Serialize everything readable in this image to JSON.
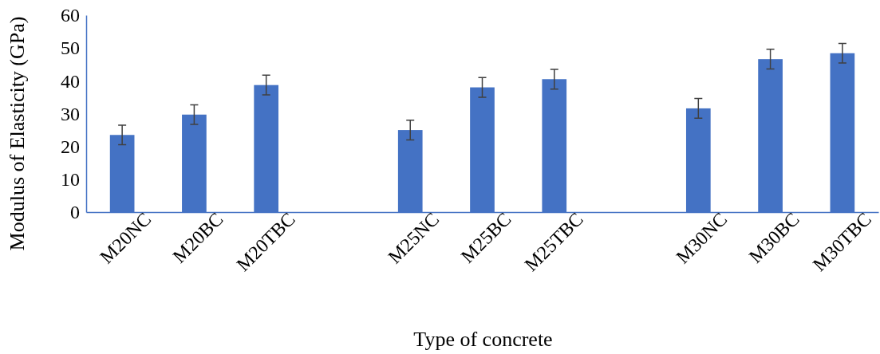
{
  "chart_data": {
    "type": "bar",
    "xlabel": "Type of concrete",
    "ylabel": "Modulus of Elasticity (GPa)",
    "categories": [
      "M20NC",
      "M20BC",
      "M20TBC",
      null,
      "M25NC",
      "M25BC",
      "M25TBC",
      null,
      "M30NC",
      "M30BC",
      "M30TBC"
    ],
    "values": [
      23.5,
      29.7,
      38.7,
      null,
      25,
      38,
      40.5,
      null,
      31.6,
      46.6,
      48.4
    ],
    "errors": [
      3,
      3,
      3,
      null,
      3,
      3,
      3,
      null,
      3,
      3,
      3
    ],
    "color": "#4472c4",
    "ylim": [
      0,
      60
    ],
    "yticks": [
      0,
      10,
      20,
      30,
      40,
      50,
      60
    ],
    "grid": false
  }
}
